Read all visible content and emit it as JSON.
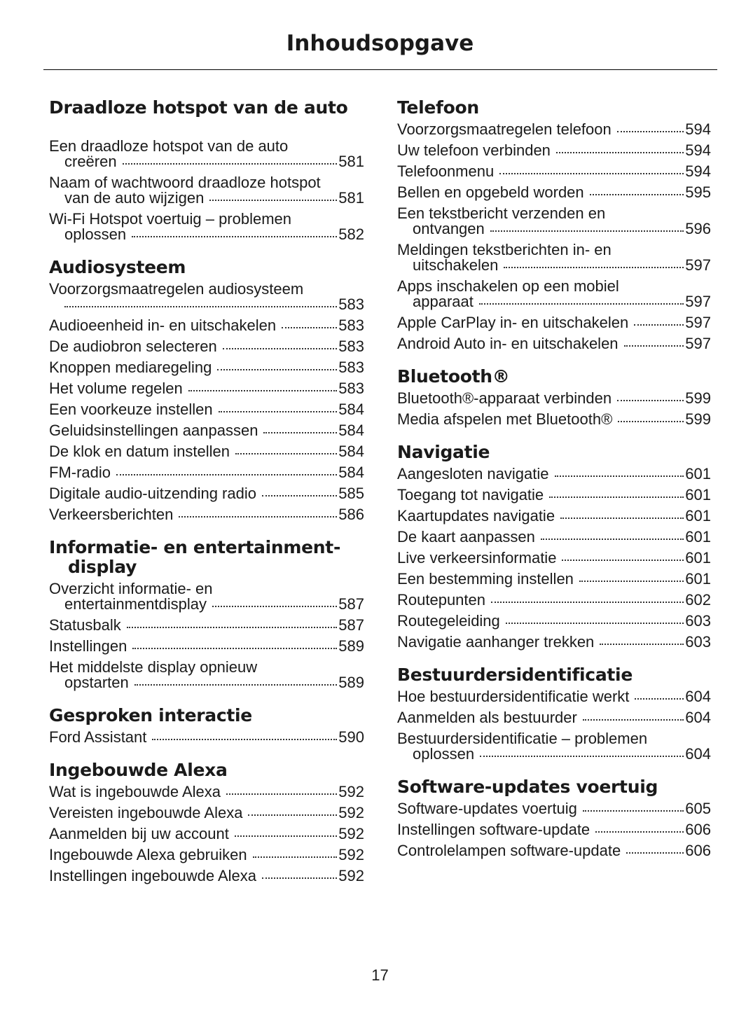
{
  "header": {
    "title": "Inhoudsopgave"
  },
  "columns": [
    {
      "sections": [
        {
          "title": "Draadloze hotspot van de auto",
          "entries": [
            {
              "lines": [
                "Een draadloze hotspot van de auto",
                "creëren"
              ],
              "page": 581
            },
            {
              "lines": [
                "Naam of wachtwoord draadloze hotspot",
                "van de auto wijzigen"
              ],
              "page": 581
            },
            {
              "lines": [
                "Wi-Fi Hotspot voertuig – problemen",
                "oplossen"
              ],
              "page": 582
            }
          ]
        },
        {
          "title": "Audiosysteem",
          "entries": [
            {
              "lines": [
                "Voorzorgsmaatregelen audiosysteem"
              ],
              "page": 583,
              "page_on_new_line": true
            },
            {
              "lines": [
                "Audioeenheid in- en uitschakelen"
              ],
              "page": 583
            },
            {
              "lines": [
                "De audiobron selecteren"
              ],
              "page": 583
            },
            {
              "lines": [
                "Knoppen mediaregeling"
              ],
              "page": 583
            },
            {
              "lines": [
                "Het volume regelen"
              ],
              "page": 583
            },
            {
              "lines": [
                "Een voorkeuze instellen"
              ],
              "page": 584
            },
            {
              "lines": [
                "Geluidsinstellingen aanpassen"
              ],
              "page": 584
            },
            {
              "lines": [
                "De klok en datum instellen"
              ],
              "page": 584
            },
            {
              "lines": [
                "FM-radio"
              ],
              "page": 584
            },
            {
              "lines": [
                "Digitale audio-uitzending radio"
              ],
              "page": 585
            },
            {
              "lines": [
                "Verkeersberichten"
              ],
              "page": 586
            }
          ]
        },
        {
          "title": [
            "Informatie- en entertainment-",
            "display"
          ],
          "entries": [
            {
              "lines": [
                "Overzicht informatie- en",
                "entertainmentdisplay"
              ],
              "page": 587
            },
            {
              "lines": [
                "Statusbalk"
              ],
              "page": 587
            },
            {
              "lines": [
                "Instellingen"
              ],
              "page": 589
            },
            {
              "lines": [
                "Het middelste display opnieuw",
                "opstarten"
              ],
              "page": 589
            }
          ]
        },
        {
          "title": "Gesproken interactie",
          "entries": [
            {
              "lines": [
                "Ford Assistant"
              ],
              "page": 590
            }
          ]
        },
        {
          "title": "Ingebouwde Alexa",
          "entries": [
            {
              "lines": [
                "Wat is ingebouwde Alexa"
              ],
              "page": 592
            },
            {
              "lines": [
                "Vereisten ingebouwde Alexa"
              ],
              "page": 592
            },
            {
              "lines": [
                "Aanmelden bij uw account"
              ],
              "page": 592
            },
            {
              "lines": [
                "Ingebouwde Alexa gebruiken"
              ],
              "page": 592
            },
            {
              "lines": [
                "Instellingen ingebouwde Alexa"
              ],
              "page": 592
            }
          ]
        }
      ]
    },
    {
      "sections": [
        {
          "title": "Telefoon",
          "entries": [
            {
              "lines": [
                "Voorzorgsmaatregelen telefoon"
              ],
              "page": 594
            },
            {
              "lines": [
                "Uw telefoon verbinden"
              ],
              "page": 594
            },
            {
              "lines": [
                "Telefoonmenu"
              ],
              "page": 594
            },
            {
              "lines": [
                "Bellen en opgebeld worden"
              ],
              "page": 595
            },
            {
              "lines": [
                "Een tekstbericht verzenden en",
                "ontvangen"
              ],
              "page": 596
            },
            {
              "lines": [
                "Meldingen tekstberichten in- en",
                "uitschakelen"
              ],
              "page": 597
            },
            {
              "lines": [
                "Apps inschakelen op een mobiel",
                "apparaat"
              ],
              "page": 597
            },
            {
              "lines": [
                "Apple CarPlay in- en uitschakelen"
              ],
              "page": 597
            },
            {
              "lines": [
                "Android Auto in- en uitschakelen"
              ],
              "page": 597
            }
          ]
        },
        {
          "title": "Bluetooth®",
          "entries": [
            {
              "lines": [
                "Bluetooth®-apparaat verbinden"
              ],
              "page": 599
            },
            {
              "lines": [
                "Media afspelen met Bluetooth®"
              ],
              "page": 599
            }
          ]
        },
        {
          "title": "Navigatie",
          "entries": [
            {
              "lines": [
                "Aangesloten navigatie"
              ],
              "page": 601
            },
            {
              "lines": [
                "Toegang tot navigatie"
              ],
              "page": 601
            },
            {
              "lines": [
                "Kaartupdates navigatie"
              ],
              "page": 601
            },
            {
              "lines": [
                "De kaart aanpassen"
              ],
              "page": 601
            },
            {
              "lines": [
                "Live verkeersinformatie"
              ],
              "page": 601
            },
            {
              "lines": [
                "Een bestemming instellen"
              ],
              "page": 601
            },
            {
              "lines": [
                "Routepunten"
              ],
              "page": 602
            },
            {
              "lines": [
                "Routegeleiding"
              ],
              "page": 603
            },
            {
              "lines": [
                "Navigatie aanhanger trekken"
              ],
              "page": 603
            }
          ]
        },
        {
          "title": "Bestuurdersidentificatie",
          "entries": [
            {
              "lines": [
                "Hoe bestuurdersidentificatie werkt"
              ],
              "page": 604
            },
            {
              "lines": [
                "Aanmelden als bestuurder"
              ],
              "page": 604
            },
            {
              "lines": [
                "Bestuurdersidentificatie – problemen",
                "oplossen"
              ],
              "page": 604
            }
          ]
        },
        {
          "title": "Software-updates voertuig",
          "entries": [
            {
              "lines": [
                "Software-updates voertuig"
              ],
              "page": 605
            },
            {
              "lines": [
                "Instellingen software-update"
              ],
              "page": 606
            },
            {
              "lines": [
                "Controlelampen software-update"
              ],
              "page": 606
            }
          ]
        }
      ]
    }
  ],
  "footer": {
    "page_number": 17
  }
}
